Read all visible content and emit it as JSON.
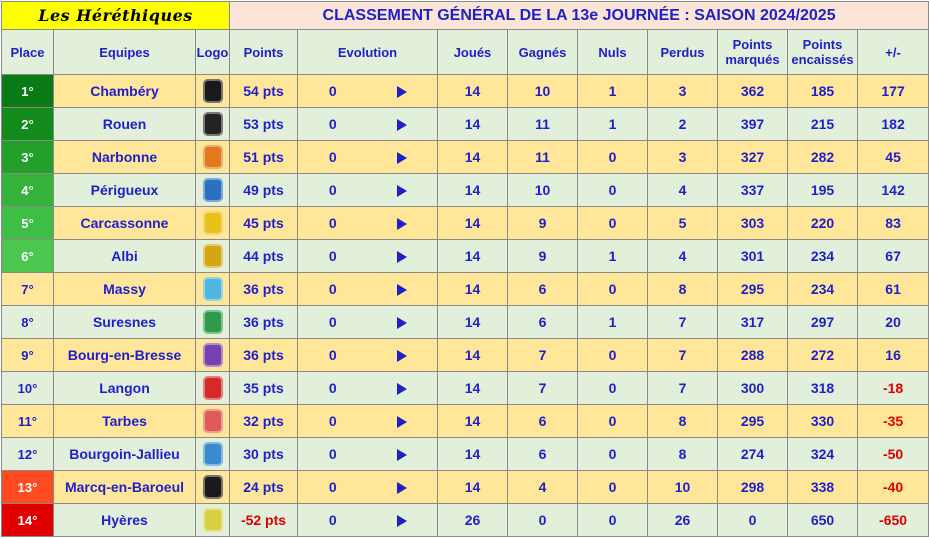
{
  "header": {
    "brand": "Les Héréthiques",
    "title": "CLASSEMENT GÉNÉRAL DE LA 13e JOURNÉE : SAISON 2024/2025"
  },
  "columns": {
    "place": "Place",
    "equipes": "Equipes",
    "logo": "Logo",
    "points": "Points",
    "evolution": "Evolution",
    "joues": "Joués",
    "gagnes": "Gagnés",
    "nuls": "Nuls",
    "perdus": "Perdus",
    "points_marques_1": "Points",
    "points_marques_2": "marqués",
    "points_encaisses_1": "Points",
    "points_encaisses_2": "encaissés",
    "diff": "+/-"
  },
  "colors": {
    "odd_row": "#ffe699",
    "even_row": "#e2efda",
    "text": "#1f1fcc",
    "negative": "#e00000"
  },
  "rows": [
    {
      "place": "1°",
      "place_color": "#0a7a14",
      "team": "Chambéry",
      "logo_icon": "chambery-logo-icon",
      "logo_color": "#1a1a1a",
      "points": "54 pts",
      "points_negative": false,
      "evo": "0",
      "joues": "14",
      "gagnes": "10",
      "nuls": "1",
      "perdus": "3",
      "pm": "362",
      "pe": "185",
      "diff": "177",
      "diff_negative": false
    },
    {
      "place": "2°",
      "place_color": "#138a1c",
      "team": "Rouen",
      "logo_icon": "rouen-logo-icon",
      "logo_color": "#222222",
      "points": "53 pts",
      "points_negative": false,
      "evo": "0",
      "joues": "14",
      "gagnes": "11",
      "nuls": "1",
      "perdus": "2",
      "pm": "397",
      "pe": "215",
      "diff": "182",
      "diff_negative": false
    },
    {
      "place": "3°",
      "place_color": "#22a02a",
      "team": "Narbonne",
      "logo_icon": "narbonne-logo-icon",
      "logo_color": "#e07a1a",
      "points": "51 pts",
      "points_negative": false,
      "evo": "0",
      "joues": "14",
      "gagnes": "11",
      "nuls": "0",
      "perdus": "3",
      "pm": "327",
      "pe": "282",
      "diff": "45",
      "diff_negative": false
    },
    {
      "place": "4°",
      "place_color": "#34b23a",
      "team": "Périgueux",
      "logo_icon": "perigueux-logo-icon",
      "logo_color": "#2a6fc0",
      "points": "49 pts",
      "points_negative": false,
      "evo": "0",
      "joues": "14",
      "gagnes": "10",
      "nuls": "0",
      "perdus": "4",
      "pm": "337",
      "pe": "195",
      "diff": "142",
      "diff_negative": false
    },
    {
      "place": "5°",
      "place_color": "#3fbe45",
      "team": "Carcassonne",
      "logo_icon": "carcassonne-logo-icon",
      "logo_color": "#e8c21a",
      "points": "45 pts",
      "points_negative": false,
      "evo": "0",
      "joues": "14",
      "gagnes": "9",
      "nuls": "0",
      "perdus": "5",
      "pm": "303",
      "pe": "220",
      "diff": "83",
      "diff_negative": false
    },
    {
      "place": "6°",
      "place_color": "#4cc852",
      "team": "Albi",
      "logo_icon": "albi-logo-icon",
      "logo_color": "#d4a514",
      "points": "44 pts",
      "points_negative": false,
      "evo": "0",
      "joues": "14",
      "gagnes": "9",
      "nuls": "1",
      "perdus": "4",
      "pm": "301",
      "pe": "234",
      "diff": "67",
      "diff_negative": false
    },
    {
      "place": "7°",
      "place_color": "",
      "team": "Massy",
      "logo_icon": "massy-logo-icon",
      "logo_color": "#4fb6e0",
      "points": "36 pts",
      "points_negative": false,
      "evo": "0",
      "joues": "14",
      "gagnes": "6",
      "nuls": "0",
      "perdus": "8",
      "pm": "295",
      "pe": "234",
      "diff": "61",
      "diff_negative": false
    },
    {
      "place": "8°",
      "place_color": "",
      "team": "Suresnes",
      "logo_icon": "suresnes-logo-icon",
      "logo_color": "#2f9a4a",
      "points": "36 pts",
      "points_negative": false,
      "evo": "0",
      "joues": "14",
      "gagnes": "6",
      "nuls": "1",
      "perdus": "7",
      "pm": "317",
      "pe": "297",
      "diff": "20",
      "diff_negative": false
    },
    {
      "place": "9°",
      "place_color": "",
      "team": "Bourg-en-Bresse",
      "logo_icon": "bourg-logo-icon",
      "logo_color": "#7a3fb0",
      "points": "36 pts",
      "points_negative": false,
      "evo": "0",
      "joues": "14",
      "gagnes": "7",
      "nuls": "0",
      "perdus": "7",
      "pm": "288",
      "pe": "272",
      "diff": "16",
      "diff_negative": false
    },
    {
      "place": "10°",
      "place_color": "",
      "team": "Langon",
      "logo_icon": "langon-logo-icon",
      "logo_color": "#d42a2a",
      "points": "35 pts",
      "points_negative": false,
      "evo": "0",
      "joues": "14",
      "gagnes": "7",
      "nuls": "0",
      "perdus": "7",
      "pm": "300",
      "pe": "318",
      "diff": "-18",
      "diff_negative": true
    },
    {
      "place": "11°",
      "place_color": "",
      "team": "Tarbes",
      "logo_icon": "tarbes-logo-icon",
      "logo_color": "#e05a5a",
      "points": "32 pts",
      "points_negative": false,
      "evo": "0",
      "joues": "14",
      "gagnes": "6",
      "nuls": "0",
      "perdus": "8",
      "pm": "295",
      "pe": "330",
      "diff": "-35",
      "diff_negative": true
    },
    {
      "place": "12°",
      "place_color": "",
      "team": "Bourgoin-Jallieu",
      "logo_icon": "csbj-logo-icon",
      "logo_color": "#3a8ad0",
      "points": "30 pts",
      "points_negative": false,
      "evo": "0",
      "joues": "14",
      "gagnes": "6",
      "nuls": "0",
      "perdus": "8",
      "pm": "274",
      "pe": "324",
      "diff": "-50",
      "diff_negative": true
    },
    {
      "place": "13°",
      "place_color": "#ff4b1f",
      "team": "Marcq-en-Baroeul",
      "logo_icon": "olympique-marcquois-logo-icon",
      "logo_color": "#1a1a1a",
      "points": "24 pts",
      "points_negative": false,
      "evo": "0",
      "joues": "14",
      "gagnes": "4",
      "nuls": "0",
      "perdus": "10",
      "pm": "298",
      "pe": "338",
      "diff": "-40",
      "diff_negative": true
    },
    {
      "place": "14°",
      "place_color": "#e00000",
      "team": "Hyères",
      "logo_icon": "hyeres-logo-icon",
      "logo_color": "#d8d040",
      "points": "-52 pts",
      "points_negative": true,
      "evo": "0",
      "joues": "26",
      "gagnes": "0",
      "nuls": "0",
      "perdus": "26",
      "pm": "0",
      "pe": "650",
      "diff": "-650",
      "diff_negative": true
    }
  ]
}
